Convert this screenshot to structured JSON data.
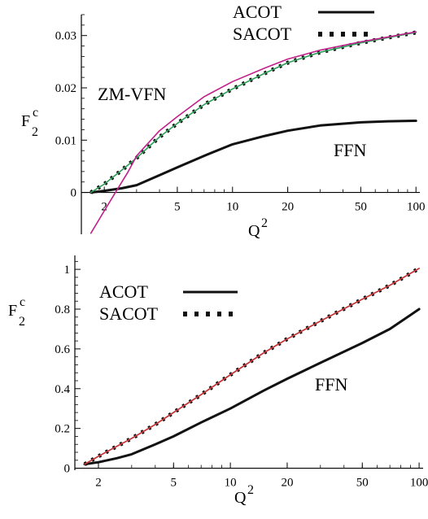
{
  "chart_data": [
    {
      "type": "line",
      "xscale": "log",
      "xlim": [
        1.5,
        105
      ],
      "ylim": [
        -0.008,
        0.034
      ],
      "ylabel": {
        "main": "F",
        "sup": "c",
        "sub": "2"
      },
      "xlabel": {
        "main": "Q",
        "sup": "2"
      },
      "yticks": [
        0,
        0.01,
        0.02,
        0.03
      ],
      "ytick_labels": [
        "0",
        "0.01",
        "0.02",
        "0.03"
      ],
      "xticks": [
        2,
        5,
        10,
        20,
        50,
        100
      ],
      "xtick_labels": [
        "2",
        "5",
        "10",
        "20",
        "50",
        "100"
      ],
      "legend_position": "top-right",
      "annotations": [
        {
          "text": "ZM-VFN",
          "x": 1.75,
          "y": 0.0205
        },
        {
          "text": "FFN",
          "x": 28,
          "y": 0.0085
        }
      ],
      "series": [
        {
          "name": "ACOT",
          "style": "solid",
          "color": "#111111",
          "x": [
            1.69,
            2,
            2.5,
            3,
            4,
            5,
            7,
            10,
            15,
            20,
            30,
            50,
            70,
            100
          ],
          "y": [
            0.0,
            0.0003,
            0.0008,
            0.0014,
            0.0033,
            0.0048,
            0.007,
            0.0092,
            0.0108,
            0.0118,
            0.0128,
            0.0134,
            0.0136,
            0.0137
          ]
        },
        {
          "name": "SACOT",
          "style": "dotted",
          "color": "#111111",
          "x": [
            1.69,
            2,
            2.5,
            3,
            4,
            5,
            7,
            10,
            15,
            20,
            30,
            50,
            70,
            100
          ],
          "y": [
            0.0,
            0.0016,
            0.0043,
            0.0066,
            0.0106,
            0.0132,
            0.0168,
            0.0198,
            0.0228,
            0.0248,
            0.0268,
            0.0286,
            0.0296,
            0.0306
          ]
        },
        {
          "name": "",
          "style": "solid",
          "color": "#2e9e5b",
          "x": [
            1.69,
            2,
            2.5,
            3,
            4,
            5,
            7,
            10,
            15,
            20,
            30,
            50,
            70,
            100
          ],
          "y": [
            0.0,
            0.0016,
            0.0043,
            0.0066,
            0.0106,
            0.0132,
            0.0168,
            0.0198,
            0.0228,
            0.0248,
            0.0268,
            0.0286,
            0.0296,
            0.0306
          ]
        },
        {
          "name": "ZM-VFN",
          "style": "solid",
          "color": "#c0208a",
          "x": [
            1.69,
            2,
            2.3,
            2.7,
            3,
            4,
            5,
            7,
            10,
            15,
            20,
            30,
            50,
            70,
            100
          ],
          "y": [
            -0.0078,
            -0.0035,
            0.0,
            0.004,
            0.007,
            0.0118,
            0.0145,
            0.0183,
            0.0212,
            0.0238,
            0.0255,
            0.0272,
            0.0288,
            0.0297,
            0.0307
          ]
        }
      ]
    },
    {
      "type": "line",
      "xscale": "log",
      "xlim": [
        1.5,
        105
      ],
      "ylim": [
        -0.01,
        1.07
      ],
      "ylabel": {
        "main": "F",
        "sup": "c",
        "sub": "2"
      },
      "xlabel": {
        "main": "Q",
        "sup": "2"
      },
      "yticks": [
        0,
        0.2,
        0.4,
        0.6,
        0.8,
        1
      ],
      "ytick_labels": [
        "0",
        "0.2",
        "0.4",
        "0.6",
        "0.8",
        "1"
      ],
      "xticks": [
        2,
        5,
        10,
        20,
        50,
        100
      ],
      "xtick_labels": [
        "2",
        "5",
        "10",
        "20",
        "50",
        "100"
      ],
      "legend_position": "top-left",
      "annotations": [
        {
          "text": "FFN",
          "x": 26,
          "y": 0.3
        }
      ],
      "series": [
        {
          "name": "ACOT",
          "style": "solid",
          "color": "#111111",
          "x": [
            1.69,
            2,
            2.5,
            3,
            4,
            5,
            7,
            10,
            15,
            20,
            30,
            50,
            70,
            100
          ],
          "y": [
            0.02,
            0.03,
            0.05,
            0.07,
            0.12,
            0.16,
            0.23,
            0.3,
            0.39,
            0.45,
            0.53,
            0.63,
            0.7,
            0.8
          ]
        },
        {
          "name": "SACOT",
          "style": "dotted",
          "color": "#111111",
          "x": [
            1.69,
            2,
            2.5,
            3,
            4,
            5,
            7,
            10,
            15,
            20,
            30,
            50,
            70,
            100
          ],
          "y": [
            0.02,
            0.06,
            0.11,
            0.15,
            0.22,
            0.28,
            0.37,
            0.47,
            0.58,
            0.65,
            0.74,
            0.85,
            0.92,
            1.005
          ]
        },
        {
          "name": "",
          "style": "solid",
          "color": "#2e9e5b",
          "x": [
            1.69,
            2,
            2.5,
            3,
            4,
            5,
            7,
            10,
            15,
            20,
            30,
            50,
            70,
            100
          ],
          "y": [
            0.02,
            0.06,
            0.11,
            0.15,
            0.22,
            0.28,
            0.37,
            0.47,
            0.58,
            0.65,
            0.74,
            0.85,
            0.92,
            1.005
          ]
        },
        {
          "name": "",
          "style": "solid",
          "color": "#d0303a",
          "x": [
            1.69,
            2,
            2.5,
            3,
            4,
            5,
            7,
            10,
            15,
            20,
            30,
            50,
            70,
            100
          ],
          "y": [
            0.02,
            0.06,
            0.11,
            0.15,
            0.22,
            0.28,
            0.37,
            0.47,
            0.58,
            0.65,
            0.74,
            0.85,
            0.92,
            1.005
          ]
        }
      ]
    }
  ]
}
